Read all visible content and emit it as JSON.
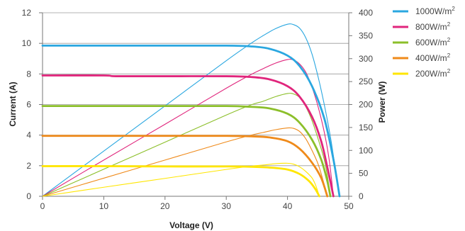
{
  "chart_data": {
    "type": "line",
    "xlabel": "Voltage (V)",
    "ylabel_left": "Current (A)",
    "ylabel_right": "Power (W)",
    "xlim": [
      0,
      50
    ],
    "ylim_left": [
      0,
      12
    ],
    "ylim_right": [
      0,
      400
    ],
    "xticks": [
      0,
      10,
      20,
      30,
      40,
      50
    ],
    "yticks_left": [
      0,
      2,
      4,
      6,
      8,
      10,
      12
    ],
    "yticks_right": [
      0,
      50,
      100,
      150,
      200,
      250,
      300,
      350,
      400
    ],
    "grid": "horizontal",
    "legend_position": "top-right",
    "series": [
      {
        "name": "1000W/m",
        "superscript": "2",
        "color": "#2aa7e0",
        "current": [
          [
            0,
            9.85
          ],
          [
            10,
            9.85
          ],
          [
            20,
            9.85
          ],
          [
            30,
            9.85
          ],
          [
            34,
            9.8
          ],
          [
            37,
            9.65
          ],
          [
            40,
            9.2
          ],
          [
            42,
            8.5
          ],
          [
            44,
            7.2
          ],
          [
            46,
            5.1
          ],
          [
            47.5,
            2.4
          ],
          [
            48.5,
            0
          ]
        ],
        "power": [
          [
            0,
            0
          ],
          [
            10,
            98.5
          ],
          [
            20,
            197
          ],
          [
            30,
            295.5
          ],
          [
            34,
            333
          ],
          [
            36,
            350
          ],
          [
            38,
            365
          ],
          [
            40,
            375
          ],
          [
            41,
            374
          ],
          [
            42,
            366
          ],
          [
            43,
            345
          ],
          [
            44,
            310
          ],
          [
            45,
            260
          ],
          [
            46,
            200
          ],
          [
            47,
            130
          ],
          [
            47.7,
            70
          ],
          [
            48.5,
            0
          ]
        ]
      },
      {
        "name": "800W/m",
        "superscript": "2",
        "color": "#e0257c",
        "current": [
          [
            0,
            7.9
          ],
          [
            10,
            7.9
          ],
          [
            12,
            7.85
          ],
          [
            20,
            7.85
          ],
          [
            30,
            7.85
          ],
          [
            34,
            7.8
          ],
          [
            37,
            7.65
          ],
          [
            40,
            7.2
          ],
          [
            42,
            6.5
          ],
          [
            44,
            5.2
          ],
          [
            45.5,
            3.6
          ],
          [
            46.5,
            1.9
          ],
          [
            47.5,
            0
          ]
        ],
        "power": [
          [
            0,
            0
          ],
          [
            10,
            79
          ],
          [
            20,
            157
          ],
          [
            30,
            235.5
          ],
          [
            34,
            265
          ],
          [
            36,
            278
          ],
          [
            38,
            290
          ],
          [
            40,
            298
          ],
          [
            41,
            297
          ],
          [
            42,
            288
          ],
          [
            43,
            270
          ],
          [
            44,
            238
          ],
          [
            45,
            195
          ],
          [
            46,
            140
          ],
          [
            46.8,
            80
          ],
          [
            47.5,
            0
          ]
        ]
      },
      {
        "name": "600W/m",
        "superscript": "2",
        "color": "#8cbf2a",
        "current": [
          [
            0,
            5.9
          ],
          [
            10,
            5.9
          ],
          [
            20,
            5.9
          ],
          [
            30,
            5.9
          ],
          [
            34,
            5.85
          ],
          [
            37,
            5.75
          ],
          [
            40,
            5.4
          ],
          [
            42,
            4.8
          ],
          [
            44,
            3.7
          ],
          [
            45.5,
            2.4
          ],
          [
            46.5,
            1.0
          ],
          [
            47,
            0
          ]
        ],
        "power": [
          [
            0,
            0
          ],
          [
            10,
            59
          ],
          [
            20,
            118
          ],
          [
            30,
            177
          ],
          [
            34,
            199
          ],
          [
            36,
            207
          ],
          [
            38,
            217
          ],
          [
            40,
            224
          ],
          [
            41,
            223
          ],
          [
            42,
            215
          ],
          [
            43,
            195
          ],
          [
            44,
            165
          ],
          [
            45,
            125
          ],
          [
            46,
            80
          ],
          [
            46.5,
            45
          ],
          [
            47,
            0
          ]
        ]
      },
      {
        "name": "400W/m",
        "superscript": "2",
        "color": "#ef8a1a",
        "current": [
          [
            0,
            3.95
          ],
          [
            10,
            3.95
          ],
          [
            20,
            3.95
          ],
          [
            30,
            3.95
          ],
          [
            34,
            3.92
          ],
          [
            37,
            3.85
          ],
          [
            40,
            3.6
          ],
          [
            42,
            3.1
          ],
          [
            44,
            2.2
          ],
          [
            45.5,
            1.2
          ],
          [
            46.5,
            0
          ]
        ],
        "power": [
          [
            0,
            0
          ],
          [
            10,
            39.5
          ],
          [
            20,
            79
          ],
          [
            30,
            118.5
          ],
          [
            34,
            133
          ],
          [
            36,
            139
          ],
          [
            38,
            145
          ],
          [
            40,
            149
          ],
          [
            41,
            148
          ],
          [
            42,
            141
          ],
          [
            43,
            125
          ],
          [
            44,
            100
          ],
          [
            45,
            70
          ],
          [
            45.8,
            35
          ],
          [
            46.5,
            0
          ]
        ]
      },
      {
        "name": "200W/m",
        "superscript": "2",
        "color": "#ffe600",
        "current": [
          [
            0,
            1.97
          ],
          [
            10,
            1.97
          ],
          [
            20,
            1.95
          ],
          [
            30,
            1.95
          ],
          [
            34,
            1.93
          ],
          [
            37,
            1.88
          ],
          [
            40,
            1.75
          ],
          [
            42,
            1.45
          ],
          [
            43.5,
            1.0
          ],
          [
            44.5,
            0.5
          ],
          [
            45.2,
            0
          ]
        ],
        "power": [
          [
            0,
            0
          ],
          [
            10,
            19.7
          ],
          [
            20,
            39
          ],
          [
            30,
            58.5
          ],
          [
            34,
            65.5
          ],
          [
            36,
            68
          ],
          [
            38,
            71
          ],
          [
            40,
            72
          ],
          [
            41,
            70
          ],
          [
            42,
            64
          ],
          [
            43,
            54
          ],
          [
            44,
            40
          ],
          [
            44.6,
            24
          ],
          [
            45.2,
            0
          ]
        ]
      }
    ]
  }
}
